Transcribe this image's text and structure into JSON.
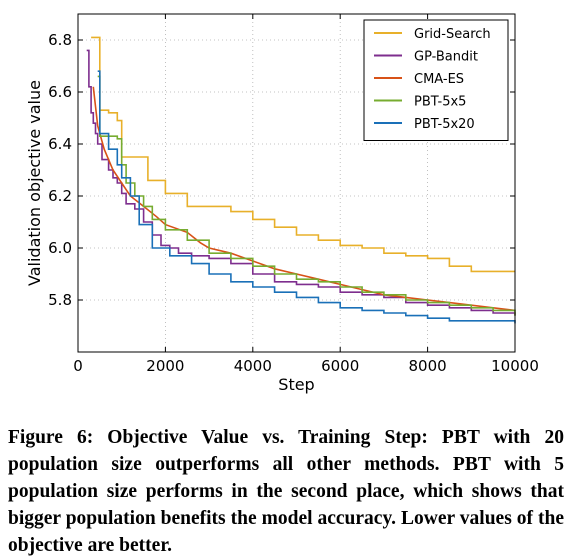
{
  "chart_data": {
    "type": "line",
    "xlabel": "Step",
    "ylabel": "Validation objective value",
    "xlim": [
      0,
      10000
    ],
    "ylim": [
      5.6,
      6.9
    ],
    "xticks": [
      0,
      2000,
      4000,
      6000,
      8000,
      10000
    ],
    "yticks": [
      5.8,
      6.0,
      6.2,
      6.4,
      6.6,
      6.8
    ],
    "xtick_labels": [
      "0",
      "2000",
      "4000",
      "6000",
      "8000",
      "10000"
    ],
    "ytick_labels": [
      "5.8",
      "6.0",
      "6.2",
      "6.4",
      "6.6",
      "6.8"
    ],
    "grid": true,
    "legend_position": "top-right",
    "series": [
      {
        "name": "Grid-Search",
        "color": "#e8b02a",
        "step": true,
        "points": [
          [
            300,
            6.81
          ],
          [
            500,
            6.53
          ],
          [
            700,
            6.52
          ],
          [
            900,
            6.49
          ],
          [
            1000,
            6.35
          ],
          [
            1600,
            6.26
          ],
          [
            2000,
            6.21
          ],
          [
            2500,
            6.16
          ],
          [
            3000,
            6.16
          ],
          [
            3500,
            6.14
          ],
          [
            4000,
            6.11
          ],
          [
            4500,
            6.08
          ],
          [
            5000,
            6.05
          ],
          [
            5500,
            6.03
          ],
          [
            6000,
            6.01
          ],
          [
            6500,
            6.0
          ],
          [
            7000,
            5.98
          ],
          [
            7500,
            5.97
          ],
          [
            8000,
            5.96
          ],
          [
            8500,
            5.93
          ],
          [
            9000,
            5.91
          ],
          [
            10000,
            5.91
          ]
        ]
      },
      {
        "name": "GP-Bandit",
        "color": "#7e2e8e",
        "step": true,
        "points": [
          [
            200,
            6.76
          ],
          [
            250,
            6.62
          ],
          [
            300,
            6.52
          ],
          [
            350,
            6.48
          ],
          [
            400,
            6.44
          ],
          [
            450,
            6.4
          ],
          [
            550,
            6.34
          ],
          [
            700,
            6.3
          ],
          [
            800,
            6.27
          ],
          [
            900,
            6.25
          ],
          [
            1000,
            6.21
          ],
          [
            1100,
            6.17
          ],
          [
            1300,
            6.15
          ],
          [
            1500,
            6.1
          ],
          [
            1700,
            6.05
          ],
          [
            1900,
            6.01
          ],
          [
            2100,
            6.0
          ],
          [
            2300,
            5.98
          ],
          [
            2600,
            5.97
          ],
          [
            3000,
            5.96
          ],
          [
            3500,
            5.94
          ],
          [
            4000,
            5.9
          ],
          [
            4500,
            5.87
          ],
          [
            5000,
            5.86
          ],
          [
            5500,
            5.85
          ],
          [
            6000,
            5.83
          ],
          [
            6500,
            5.82
          ],
          [
            7000,
            5.81
          ],
          [
            7500,
            5.79
          ],
          [
            8000,
            5.78
          ],
          [
            8500,
            5.77
          ],
          [
            9000,
            5.76
          ],
          [
            9500,
            5.75
          ],
          [
            10000,
            5.74
          ]
        ]
      },
      {
        "name": "CMA-ES",
        "color": "#d85218",
        "step": false,
        "points": [
          [
            350,
            6.62
          ],
          [
            450,
            6.47
          ],
          [
            600,
            6.38
          ],
          [
            800,
            6.3
          ],
          [
            1000,
            6.25
          ],
          [
            1200,
            6.2
          ],
          [
            1500,
            6.16
          ],
          [
            1800,
            6.12
          ],
          [
            2000,
            6.09
          ],
          [
            2500,
            6.06
          ],
          [
            2800,
            6.02
          ],
          [
            3000,
            6.0
          ],
          [
            3500,
            5.98
          ],
          [
            4000,
            5.95
          ],
          [
            4500,
            5.92
          ],
          [
            5000,
            5.9
          ],
          [
            5500,
            5.88
          ],
          [
            6000,
            5.86
          ],
          [
            6500,
            5.84
          ],
          [
            7000,
            5.82
          ],
          [
            7500,
            5.81
          ],
          [
            8000,
            5.8
          ],
          [
            8500,
            5.79
          ],
          [
            9000,
            5.78
          ],
          [
            9500,
            5.77
          ],
          [
            10000,
            5.76
          ]
        ]
      },
      {
        "name": "PBT-5x5",
        "color": "#77ac30",
        "step": true,
        "points": [
          [
            450,
            6.66
          ],
          [
            500,
            6.43
          ],
          [
            900,
            6.42
          ],
          [
            1000,
            6.32
          ],
          [
            1100,
            6.25
          ],
          [
            1300,
            6.2
          ],
          [
            1500,
            6.16
          ],
          [
            1700,
            6.11
          ],
          [
            2000,
            6.07
          ],
          [
            2500,
            6.03
          ],
          [
            3000,
            5.98
          ],
          [
            3500,
            5.96
          ],
          [
            4000,
            5.93
          ],
          [
            4500,
            5.9
          ],
          [
            5000,
            5.88
          ],
          [
            5500,
            5.87
          ],
          [
            6000,
            5.85
          ],
          [
            6500,
            5.83
          ],
          [
            7000,
            5.82
          ],
          [
            7500,
            5.8
          ],
          [
            8000,
            5.79
          ],
          [
            8500,
            5.78
          ],
          [
            9000,
            5.77
          ],
          [
            9500,
            5.76
          ],
          [
            10000,
            5.74
          ]
        ]
      },
      {
        "name": "PBT-5x20",
        "color": "#1a70b8",
        "step": true,
        "points": [
          [
            450,
            6.68
          ],
          [
            500,
            6.44
          ],
          [
            700,
            6.38
          ],
          [
            900,
            6.32
          ],
          [
            1000,
            6.27
          ],
          [
            1200,
            6.2
          ],
          [
            1400,
            6.09
          ],
          [
            1700,
            6.0
          ],
          [
            2100,
            5.97
          ],
          [
            2600,
            5.94
          ],
          [
            3000,
            5.9
          ],
          [
            3500,
            5.87
          ],
          [
            4000,
            5.85
          ],
          [
            4500,
            5.83
          ],
          [
            5000,
            5.81
          ],
          [
            5500,
            5.79
          ],
          [
            6000,
            5.77
          ],
          [
            6500,
            5.76
          ],
          [
            7000,
            5.75
          ],
          [
            7500,
            5.74
          ],
          [
            8000,
            5.73
          ],
          [
            8500,
            5.72
          ],
          [
            9000,
            5.72
          ],
          [
            9500,
            5.72
          ],
          [
            10000,
            5.71
          ]
        ]
      }
    ]
  },
  "caption": "Figure 6: Objective Value vs. Training Step: PBT with 20 population size outperforms all other methods. PBT with 5 population size performs in the second place, which shows that bigger population benefits the model accuracy. Lower values of the objective are better."
}
